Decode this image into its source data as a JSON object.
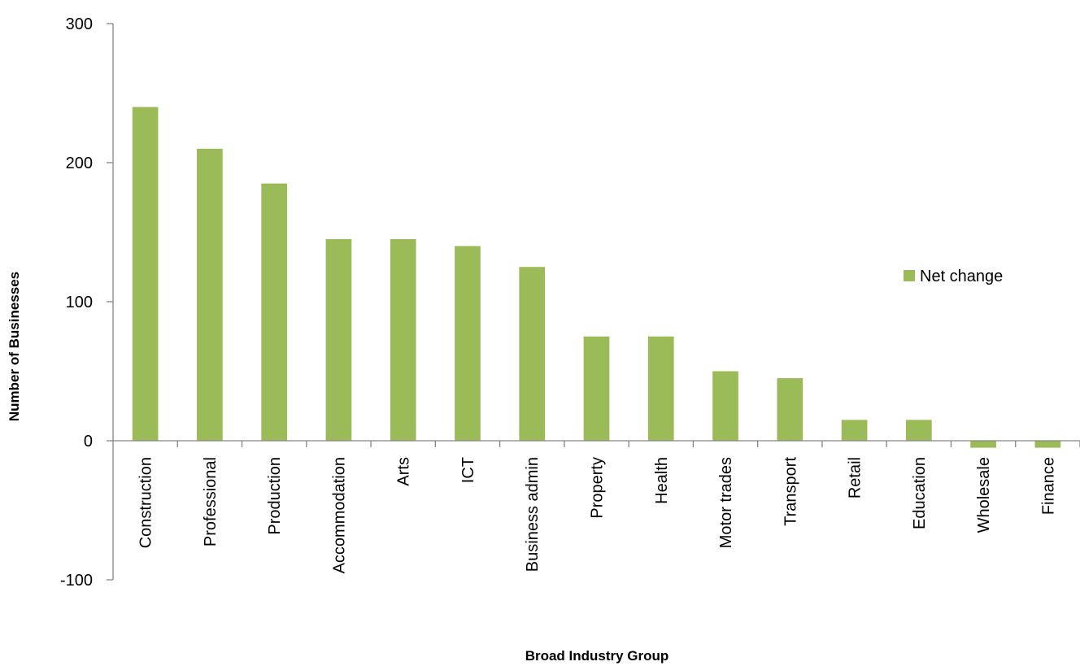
{
  "chart_data": {
    "type": "bar",
    "xlabel": "Broad Industry Group",
    "ylabel": "Number of Businesses",
    "categories": [
      "Construction",
      "Professional",
      "Production",
      "Accommodation",
      "Arts",
      "ICT",
      "Business admin",
      "Property",
      "Health",
      "Motor trades",
      "Transport",
      "Retail",
      "Education",
      "Wholesale",
      "Finance"
    ],
    "series": [
      {
        "name": "Net change",
        "color": "#9BBB59",
        "values": [
          240,
          210,
          185,
          145,
          145,
          140,
          125,
          75,
          75,
          50,
          45,
          15,
          15,
          -5,
          -5
        ]
      }
    ],
    "ylim": [
      -100,
      300
    ],
    "yticks": [
      -100,
      0,
      100,
      200,
      300
    ],
    "ytick_labels": [
      "-100",
      "0",
      "100",
      "200",
      "300"
    ],
    "grid": false,
    "legend": {
      "position": "right"
    }
  }
}
